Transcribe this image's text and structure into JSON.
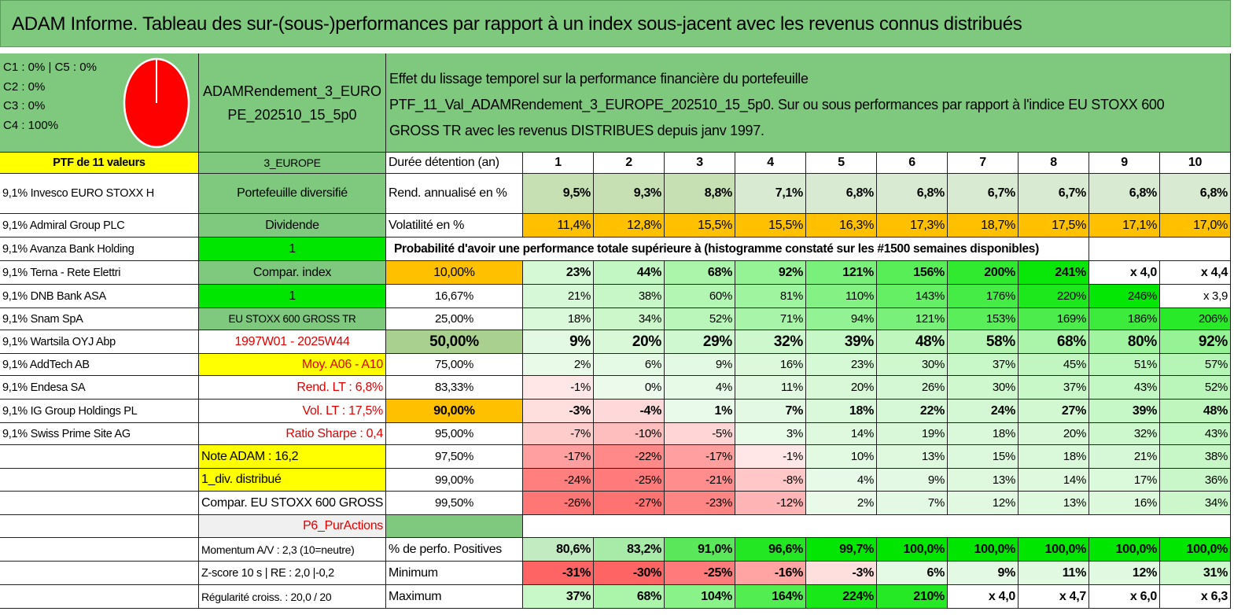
{
  "title": "ADAM Informe. Tableau des sur-(sous-)performances par rapport à un index sous-jacent avec les revenus connus distribués",
  "pie": {
    "legend": [
      "C1 : 0% | C5 : 0%",
      "C2 : 0%",
      "C3 : 0%",
      "C4 : 100%"
    ],
    "color": "#ff0000"
  },
  "portfolio": {
    "name_line1": "ADAMRendement_3_EURO",
    "name_line2": "PE_202510_15_5p0"
  },
  "effect": {
    "line1": "Effet du lissage temporel sur la performance financière du portefeuille",
    "line2": "PTF_11_Val_ADAMRendement_3_EUROPE_202510_15_5p0. Sur ou sous performances par rapport à l'indice EU STOXX 600",
    "line3": "GROSS TR avec les revenus DISTRIBUES depuis janv 1997."
  },
  "left_col": [
    "PTF de 11 valeurs",
    "9,1% Invesco EURO STOXX H",
    "9,1% Admiral Group PLC",
    "9,1% Avanza Bank Holding",
    "9,1% Terna - Rete Elettri",
    "9,1% DNB Bank ASA",
    "9,1% Snam SpA",
    "9,1% Wartsila OYJ Abp",
    "9,1% AddTech AB",
    "9,1% Endesa SA",
    "9,1% IG Group Holdings PL",
    "9,1% Swiss Prime Site AG",
    "",
    "",
    "",
    "",
    "",
    "",
    ""
  ],
  "mid_col": [
    "3_EUROPE",
    "Portefeuille diversifié",
    "Dividende",
    "1",
    "Compar. index",
    "1",
    "EU STOXX 600 GROSS TR",
    "1997W01 - 2025W44",
    "Moy. A06 - A10",
    "Rend. LT : 6,8%",
    "Vol. LT : 17,5%",
    "Ratio Sharpe : 0,4",
    "Note ADAM : 16,2",
    "1_div. distribué",
    "Compar. EU STOXX 600 GROSS TR",
    "P6_PurActions",
    "Momentum A/V : 2,3 (10=neutre)",
    "Z-score 10 s | RE : 2,0 |-0,2",
    "Régularité croiss. : 20,0 / 20"
  ],
  "header_row": {
    "label": "Durée détention (an)",
    "years": [
      "1",
      "2",
      "3",
      "4",
      "5",
      "6",
      "7",
      "8",
      "9",
      "10"
    ]
  },
  "rend": {
    "label": "Rend. annualisé en %",
    "values": [
      "9,5%",
      "9,3%",
      "8,8%",
      "7,1%",
      "6,8%",
      "6,8%",
      "6,7%",
      "6,7%",
      "6,8%",
      "6,8%"
    ]
  },
  "vol": {
    "label": "Volatilité en %",
    "values": [
      "11,4%",
      "12,8%",
      "15,5%",
      "15,5%",
      "16,3%",
      "17,3%",
      "18,7%",
      "17,5%",
      "17,1%",
      "17,0%"
    ]
  },
  "proba_title": "Probabilité d'avoir une performance totale supérieure à (histogramme constaté sur les #1500 semaines disponibles)",
  "proba": [
    {
      "p": "10,00%",
      "v": [
        "23%",
        "44%",
        "68%",
        "92%",
        "121%",
        "156%",
        "200%",
        "241%",
        "x 4,0",
        "x 4,4"
      ]
    },
    {
      "p": "16,67%",
      "v": [
        "21%",
        "38%",
        "60%",
        "81%",
        "110%",
        "143%",
        "176%",
        "220%",
        "246%",
        "x 3,9"
      ]
    },
    {
      "p": "25,00%",
      "v": [
        "18%",
        "34%",
        "52%",
        "71%",
        "94%",
        "121%",
        "153%",
        "169%",
        "186%",
        "206%"
      ]
    },
    {
      "p": "50,00%",
      "v": [
        "9%",
        "20%",
        "29%",
        "32%",
        "39%",
        "48%",
        "58%",
        "68%",
        "80%",
        "92%"
      ]
    },
    {
      "p": "75,00%",
      "v": [
        "2%",
        "6%",
        "9%",
        "16%",
        "23%",
        "30%",
        "37%",
        "45%",
        "51%",
        "57%"
      ]
    },
    {
      "p": "83,33%",
      "v": [
        "-1%",
        "0%",
        "4%",
        "11%",
        "20%",
        "26%",
        "30%",
        "37%",
        "43%",
        "52%"
      ]
    },
    {
      "p": "90,00%",
      "v": [
        "-3%",
        "-4%",
        "1%",
        "7%",
        "18%",
        "22%",
        "24%",
        "27%",
        "39%",
        "48%"
      ]
    },
    {
      "p": "95,00%",
      "v": [
        "-7%",
        "-10%",
        "-5%",
        "3%",
        "14%",
        "19%",
        "18%",
        "20%",
        "32%",
        "43%"
      ]
    },
    {
      "p": "97,50%",
      "v": [
        "-17%",
        "-22%",
        "-17%",
        "-1%",
        "10%",
        "13%",
        "15%",
        "18%",
        "21%",
        "38%"
      ]
    },
    {
      "p": "99,00%",
      "v": [
        "-24%",
        "-25%",
        "-21%",
        "-8%",
        "4%",
        "9%",
        "13%",
        "14%",
        "17%",
        "36%"
      ]
    },
    {
      "p": "99,50%",
      "v": [
        "-26%",
        "-27%",
        "-23%",
        "-12%",
        "2%",
        "7%",
        "12%",
        "13%",
        "16%",
        "34%"
      ]
    }
  ],
  "stats": [
    {
      "label": "% de perfo. Positives",
      "v": [
        "80,6%",
        "83,2%",
        "91,0%",
        "96,6%",
        "99,7%",
        "100,0%",
        "100,0%",
        "100,0%",
        "100,0%",
        "100,0%"
      ]
    },
    {
      "label": "Minimum",
      "v": [
        "-31%",
        "-30%",
        "-25%",
        "-16%",
        "-3%",
        "6%",
        "9%",
        "11%",
        "12%",
        "31%"
      ]
    },
    {
      "label": "Maximum",
      "v": [
        "37%",
        "68%",
        "104%",
        "164%",
        "224%",
        "210%",
        "x 4,0",
        "x 4,7",
        "x 6,0",
        "x 6,3"
      ]
    }
  ],
  "colors": {
    "green": "#7fc97f",
    "yellow": "#ffff00",
    "orange": "#ffc000",
    "bright_green": "#00e600",
    "red_text": "#e00000"
  }
}
